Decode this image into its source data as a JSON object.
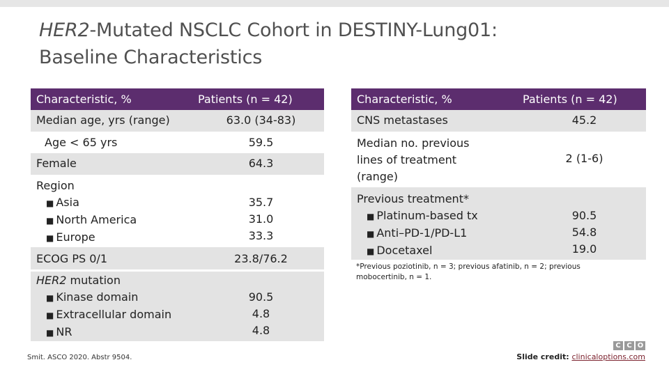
{
  "title": {
    "line1_italic": "HER2",
    "line1_rest": "-Mutated NSCLC Cohort in DESTINY-Lung01:",
    "line2": "Baseline Characteristics"
  },
  "left_table": {
    "headers": [
      "Characteristic, %",
      "Patients (n = 42)"
    ],
    "rows": {
      "median_age": {
        "label": "Median age, yrs (range)",
        "value": "63.0 (34-83)"
      },
      "age_lt65": {
        "label": "Age < 65 yrs",
        "value": "59.5"
      },
      "female": {
        "label": "Female",
        "value": "64.3"
      },
      "region": {
        "label": "Region",
        "items": [
          {
            "label": "Asia",
            "value": "35.7"
          },
          {
            "label": "North America",
            "value": "31.0"
          },
          {
            "label": "Europe",
            "value": "33.3"
          }
        ]
      },
      "ecog": {
        "label": "ECOG PS 0/1",
        "value": "23.8/76.2"
      },
      "her2": {
        "label_italic": "HER2",
        "label_rest": " mutation",
        "items": [
          {
            "label": "Kinase domain",
            "value": "90.5"
          },
          {
            "label": "Extracellular domain",
            "value": "4.8"
          },
          {
            "label": "NR",
            "value": "4.8"
          }
        ]
      }
    }
  },
  "right_table": {
    "headers": [
      "Characteristic, %",
      "Patients (n = 42)"
    ],
    "rows": {
      "cns": {
        "label": "CNS metastases",
        "value": "45.2"
      },
      "prior_lines": {
        "label": "Median no. previous lines of treatment (range)",
        "value": "2 (1-6)"
      },
      "prev_tx": {
        "label": "Previous treatment*",
        "items": [
          {
            "label": "Platinum-based tx",
            "value": "90.5"
          },
          {
            "label": "Anti–PD-1/PD-L1",
            "value": "54.8"
          },
          {
            "label": "Docetaxel",
            "value": "19.0"
          }
        ]
      }
    }
  },
  "footnote": "*Previous poziotinib, n = 3; previous afatinib, n = 2; previous mobocertinib, n = 1.",
  "source": "Smit. ASCO 2020. Abstr 9504.",
  "credit": {
    "label": "Slide credit: ",
    "link": "clinicaloptions.com"
  },
  "logo": [
    "C",
    "C",
    "O"
  ],
  "colors": {
    "header": "#5c2d6e",
    "shade": "#e3e3e3",
    "title": "#505050"
  }
}
